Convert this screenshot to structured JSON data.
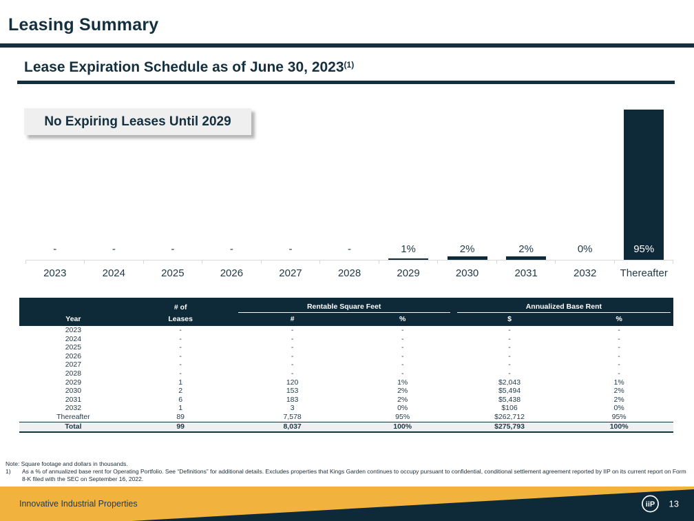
{
  "slide": {
    "title": "Leasing Summary",
    "subtitle": "Lease Expiration Schedule as of June 30, 2023",
    "subtitle_footnote_marker": "(1)",
    "callout": "No Expiring Leases Until 2029"
  },
  "chart_data": {
    "type": "bar",
    "categories": [
      "2023",
      "2024",
      "2025",
      "2026",
      "2027",
      "2028",
      "2029",
      "2030",
      "2031",
      "2032",
      "Thereafter"
    ],
    "values": [
      0,
      0,
      0,
      0,
      0,
      0,
      1,
      2,
      2,
      0,
      95
    ],
    "value_labels": [
      "-",
      "-",
      "-",
      "-",
      "-",
      "-",
      "1%",
      "2%",
      "2%",
      "0%",
      "95%"
    ],
    "title": "Lease Expiration Schedule as of June 30, 2023",
    "xlabel": "",
    "ylabel": "",
    "ylim": [
      0,
      100
    ],
    "grid": false,
    "legend": false,
    "bar_color": "#0e2938"
  },
  "table": {
    "group_headers": {
      "leases": "# of",
      "rsf": "Rentable Square Feet",
      "abr": "Annualized Base Rent"
    },
    "columns": [
      "Year",
      "Leases",
      "#",
      "%",
      "$",
      "%"
    ],
    "rows": [
      [
        "2023",
        "-",
        "-",
        "-",
        "-",
        "-"
      ],
      [
        "2024",
        "-",
        "-",
        "-",
        "-",
        "-"
      ],
      [
        "2025",
        "-",
        "-",
        "-",
        "-",
        "-"
      ],
      [
        "2026",
        "-",
        "-",
        "-",
        "-",
        "-"
      ],
      [
        "2027",
        "-",
        "-",
        "-",
        "-",
        "-"
      ],
      [
        "2028",
        "-",
        "-",
        "-",
        "-",
        "-"
      ],
      [
        "2029",
        "1",
        "120",
        "1%",
        "$2,043",
        "1%"
      ],
      [
        "2030",
        "2",
        "153",
        "2%",
        "$5,494",
        "2%"
      ],
      [
        "2031",
        "6",
        "183",
        "2%",
        "$5,438",
        "2%"
      ],
      [
        "2032",
        "1",
        "3",
        "0%",
        "$106",
        "0%"
      ],
      [
        "Thereafter",
        "89",
        "7,578",
        "95%",
        "$262,712",
        "95%"
      ]
    ],
    "total_row": [
      "Total",
      "99",
      "8,037",
      "100%",
      "$275,793",
      "100%"
    ]
  },
  "notes": {
    "note": "Note: Square footage and dollars in thousands.",
    "footnotes": [
      {
        "marker": "1)",
        "text": "As a % of annualized base rent for Operating Portfolio. See “Definitions” for additional details. Excludes properties that Kings Garden continues to occupy pursuant to confidential, conditional settlement agreement reported by IIP on its current report on Form 8-K filed with the SEC on September 16, 2022."
      }
    ]
  },
  "footer": {
    "company": "Innovative Industrial Properties",
    "logo": "iiP",
    "page_number": "13"
  },
  "colors": {
    "navy": "#0e2938",
    "rule_navy": "#14303e",
    "gold": "#f2b23e",
    "axis_gray": "#d9d9d9",
    "callout_bg": "#efefef",
    "total_row_bg": "#eef0f2"
  }
}
